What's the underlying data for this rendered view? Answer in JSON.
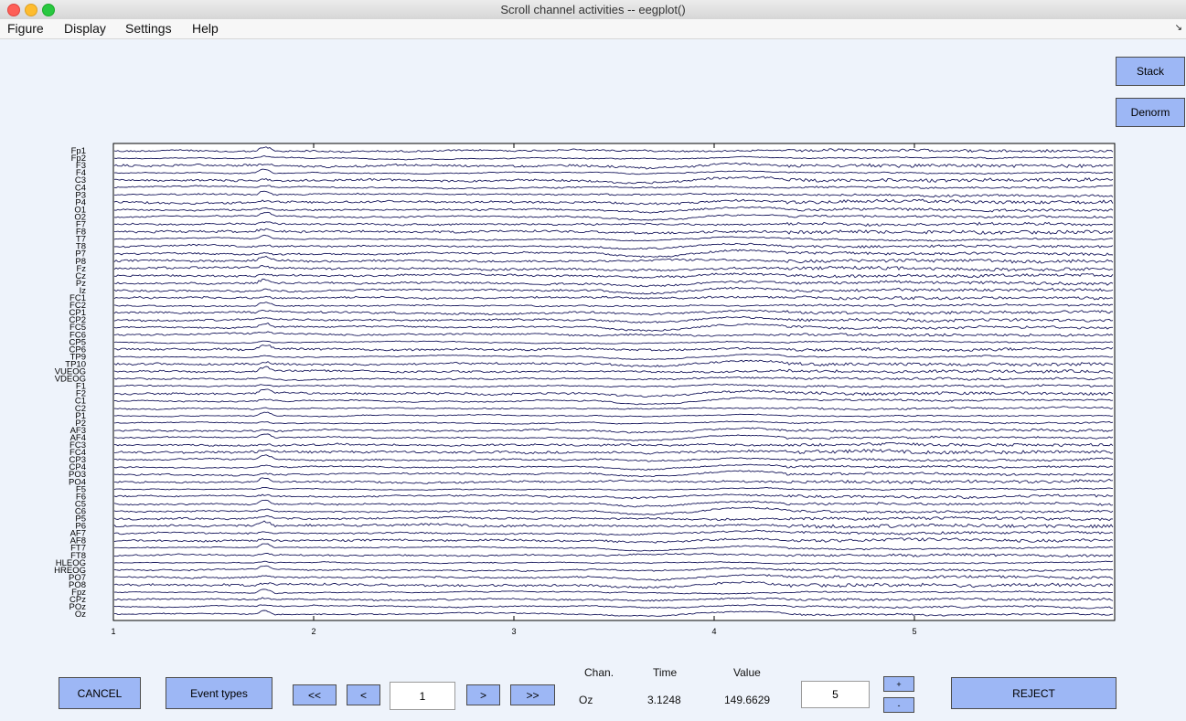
{
  "window": {
    "title": "Scroll channel activities -- eegplot()"
  },
  "menu": {
    "items": [
      "Figure",
      "Display",
      "Settings",
      "Help"
    ]
  },
  "side_buttons": {
    "stack": "Stack",
    "denorm": "Denorm"
  },
  "plot": {
    "channels": [
      "Fp1",
      "Fp2",
      "F3",
      "F4",
      "C3",
      "C4",
      "P3",
      "P4",
      "O1",
      "O2",
      "F7",
      "F8",
      "T7",
      "T8",
      "P7",
      "P8",
      "Fz",
      "Cz",
      "Pz",
      "Iz",
      "FC1",
      "FC2",
      "CP1",
      "CP2",
      "FC5",
      "FC6",
      "CP5",
      "CP6",
      "TP9",
      "TP10",
      "VUEOG",
      "VDEOG",
      "F1",
      "F2",
      "C1",
      "C2",
      "P1",
      "P2",
      "AF3",
      "AF4",
      "FC3",
      "FC4",
      "CP3",
      "CP4",
      "PO3",
      "PO4",
      "F5",
      "F6",
      "C5",
      "C6",
      "P5",
      "P6",
      "AF7",
      "AF8",
      "FT7",
      "FT8",
      "HLEOG",
      "HREOG",
      "PO7",
      "PO8",
      "Fpz",
      "CPz",
      "POz",
      "Oz"
    ],
    "x_range": [
      1,
      6
    ],
    "x_ticks": [
      "1",
      "2",
      "3",
      "4",
      "5"
    ],
    "trace_color": "#1a1a5e"
  },
  "controls": {
    "cancel": "CANCEL",
    "event_types": "Event types",
    "first": "<<",
    "prev": "<",
    "position": "1",
    "next": ">",
    "last": ">>",
    "chan_header": "Chan.",
    "time_header": "Time",
    "value_header": "Value",
    "chan_value": "Oz",
    "time_value": "3.1248",
    "value_value": "149.6629",
    "scale": "5",
    "scale_plus": "+",
    "scale_minus": "-",
    "reject": "REJECT"
  }
}
